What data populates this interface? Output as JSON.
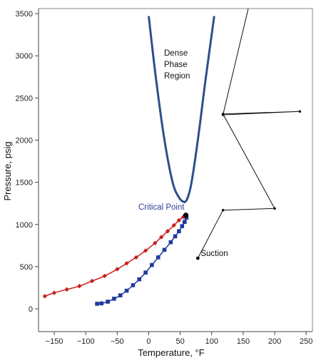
{
  "chart_data": {
    "type": "line",
    "title": "",
    "xlabel": "Temperature, °F",
    "ylabel": "Pressure, psig",
    "xlim": [
      -175,
      260
    ],
    "ylim": [
      -270,
      3560
    ],
    "x_ticks": [
      -150,
      -100,
      -50,
      0,
      50,
      100,
      150,
      200,
      250
    ],
    "y_ticks": [
      0,
      500,
      1000,
      1500,
      2000,
      2500,
      3000,
      3500
    ],
    "grid": false,
    "legend": "none",
    "colors": {
      "envelope": "#2e4f8c",
      "red": "#c8201e",
      "blue": "#1f3a9e",
      "compression": "#111111",
      "axis": "#444444",
      "critical_label": "#2b3f9a"
    },
    "series": [
      {
        "kind": "dense-phase-envelope",
        "x": [
          0,
          12,
          25,
          38,
          48,
          55,
          58,
          62,
          68,
          78,
          90,
          104
        ],
        "y": [
          3470,
          2700,
          2000,
          1500,
          1320,
          1270,
          1270,
          1320,
          1500,
          2000,
          2700,
          3470
        ]
      },
      {
        "kind": "red-diamond-curve",
        "x": [
          -165,
          -150,
          -130,
          -110,
          -90,
          -70,
          -50,
          -35,
          -20,
          -5,
          10,
          20,
          30,
          40,
          48,
          55,
          58
        ],
        "y": [
          150,
          190,
          230,
          270,
          330,
          390,
          470,
          540,
          610,
          690,
          780,
          850,
          920,
          990,
          1050,
          1090,
          1110
        ]
      },
      {
        "kind": "blue-square-curve",
        "x": [
          -82,
          -75,
          -65,
          -55,
          -45,
          -35,
          -25,
          -15,
          -5,
          5,
          15,
          25,
          35,
          42,
          48,
          53,
          57,
          60
        ],
        "y": [
          60,
          65,
          85,
          120,
          160,
          215,
          280,
          350,
          430,
          520,
          610,
          700,
          790,
          860,
          920,
          980,
          1030,
          1080
        ]
      },
      {
        "kind": "compression-path",
        "x": [
          78,
          118,
          200,
          118,
          240,
          118,
          158
        ],
        "y": [
          600,
          1170,
          1190,
          2310,
          2340,
          2300,
          3560
        ]
      }
    ],
    "points": [
      {
        "name": "critical-point",
        "x": 59,
        "y": 1110
      },
      {
        "name": "suction",
        "x": 78,
        "y": 600
      }
    ],
    "annotations": {
      "dense_phase": [
        "Dense",
        "Phase",
        "Region"
      ],
      "critical_point": "Critical Point",
      "suction": "Suction"
    }
  }
}
